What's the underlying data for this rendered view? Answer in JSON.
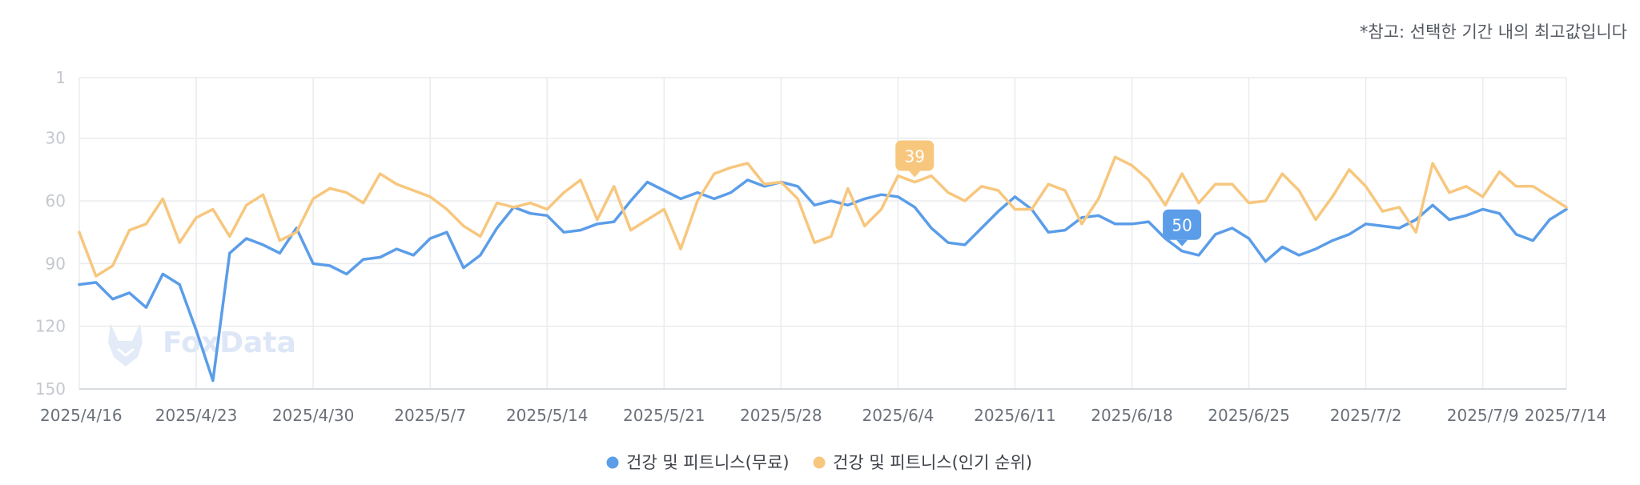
{
  "note": "*참고: 선택한 기간 내의 최고값입니다",
  "watermark": "FoxData",
  "colors": {
    "blue": "#5b9de8",
    "orange": "#f7c77e",
    "grid": "#e9ebee"
  },
  "chart_data": {
    "type": "line",
    "y_reversed": true,
    "ylim": [
      1,
      150
    ],
    "yticks": [
      1,
      30,
      60,
      90,
      120,
      150
    ],
    "x_tick_labels": [
      "2025/4/16",
      "2025/4/23",
      "2025/4/30",
      "2025/5/7",
      "2025/5/14",
      "2025/5/21",
      "2025/5/28",
      "2025/6/4",
      "2025/6/11",
      "2025/6/18",
      "2025/6/25",
      "2025/7/2",
      "2025/7/9",
      "2025/7/14"
    ],
    "x_start": "2025/4/16",
    "x_end": "2025/7/14",
    "grid": true,
    "legend_position": "bottom-center",
    "series": [
      {
        "name": "건강 및 피트니스(무료)",
        "color": "#5b9de8",
        "peak": {
          "label": "50",
          "day": 66
        },
        "values": [
          100,
          99,
          107,
          104,
          111,
          95,
          100,
          122,
          146,
          85,
          78,
          81,
          85,
          73,
          90,
          91,
          95,
          88,
          87,
          83,
          86,
          78,
          75,
          92,
          86,
          73,
          63,
          66,
          67,
          75,
          74,
          71,
          70,
          60,
          51,
          55,
          59,
          56,
          59,
          56,
          50,
          53,
          51,
          53,
          62,
          60,
          62,
          59,
          57,
          58,
          63,
          73,
          80,
          81,
          73,
          65,
          58,
          64,
          75,
          74,
          68,
          67,
          71,
          71,
          70,
          78,
          84,
          86,
          76,
          73,
          78,
          89,
          82,
          86,
          83,
          79,
          76,
          71,
          72,
          73,
          69,
          62,
          69,
          67,
          64,
          66,
          76,
          79,
          69,
          64
        ]
      },
      {
        "name": "건강 및 피트니스(인기 순위)",
        "color": "#f7c77e",
        "peak": {
          "label": "39",
          "day": 50
        },
        "values": [
          75,
          96,
          91,
          74,
          71,
          59,
          80,
          68,
          64,
          77,
          62,
          57,
          79,
          75,
          59,
          54,
          56,
          61,
          47,
          52,
          55,
          58,
          64,
          72,
          77,
          61,
          63,
          61,
          64,
          56,
          50,
          69,
          53,
          74,
          69,
          64,
          83,
          60,
          47,
          44,
          42,
          52,
          51,
          59,
          80,
          77,
          54,
          72,
          64,
          48,
          51,
          48,
          56,
          60,
          53,
          55,
          64,
          64,
          52,
          55,
          71,
          59,
          39,
          43,
          50,
          62,
          47,
          61,
          52,
          52,
          61,
          60,
          47,
          55,
          69,
          58,
          45,
          53,
          65,
          63,
          75,
          42,
          56,
          53,
          58,
          46,
          53,
          53,
          58,
          63
        ]
      }
    ]
  }
}
